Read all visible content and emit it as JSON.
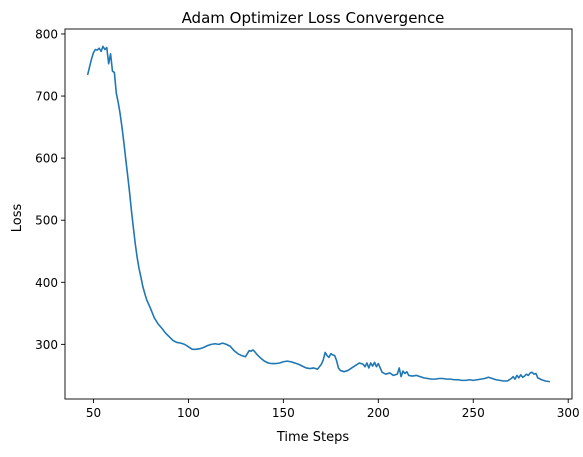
{
  "chart_data": {
    "type": "line",
    "title": "Adam Optimizer Loss Convergence",
    "xlabel": "Time Steps",
    "ylabel": "Loss",
    "xlim": [
      35,
      302
    ],
    "ylim": [
      212,
      808
    ],
    "xticks": [
      50,
      100,
      150,
      200,
      250,
      300
    ],
    "yticks": [
      300,
      400,
      500,
      600,
      700,
      800
    ],
    "grid": false,
    "legend": "none",
    "series": [
      {
        "name": "Loss",
        "color": "#1f77b4",
        "x": [
          47,
          48,
          49,
          50,
          51,
          52,
          53,
          54,
          55,
          56,
          57,
          58,
          59,
          60,
          61,
          62,
          63,
          64,
          65,
          66,
          67,
          68,
          69,
          70,
          71,
          72,
          73,
          74,
          75,
          76,
          77,
          78,
          80,
          82,
          84,
          86,
          88,
          90,
          92,
          94,
          96,
          98,
          100,
          102,
          104,
          106,
          108,
          110,
          112,
          114,
          116,
          118,
          120,
          122,
          124,
          126,
          128,
          130,
          131,
          132,
          133,
          134,
          135,
          136,
          138,
          140,
          142,
          144,
          146,
          148,
          150,
          152,
          154,
          156,
          158,
          160,
          162,
          164,
          166,
          168,
          170,
          171,
          172,
          173,
          174,
          175,
          176,
          177,
          178,
          179,
          180,
          182,
          184,
          186,
          188,
          190,
          192,
          193,
          194,
          195,
          196,
          197,
          198,
          199,
          200,
          201,
          202,
          204,
          206,
          208,
          210,
          211,
          212,
          213,
          214,
          215,
          216,
          218,
          220,
          222,
          224,
          226,
          228,
          230,
          232,
          234,
          236,
          238,
          240,
          242,
          244,
          246,
          248,
          250,
          252,
          254,
          256,
          258,
          260,
          262,
          264,
          266,
          268,
          270,
          271,
          272,
          273,
          274,
          275,
          276,
          277,
          278,
          279,
          280,
          281,
          282,
          283,
          284,
          286,
          288,
          290
        ],
        "y": [
          735,
          748,
          760,
          770,
          775,
          774,
          777,
          772,
          780,
          775,
          778,
          752,
          768,
          740,
          738,
          705,
          690,
          672,
          650,
          625,
          598,
          572,
          545,
          515,
          488,
          462,
          440,
          422,
          408,
          393,
          382,
          372,
          358,
          343,
          333,
          326,
          318,
          312,
          306,
          303,
          302,
          300,
          296,
          292,
          292,
          293,
          295,
          298,
          300,
          301,
          300,
          302,
          300,
          297,
          290,
          285,
          282,
          280,
          285,
          290,
          289,
          291,
          288,
          284,
          278,
          273,
          270,
          269,
          269,
          270,
          272,
          273,
          272,
          270,
          268,
          265,
          262,
          261,
          262,
          260,
          268,
          275,
          287,
          282,
          279,
          285,
          283,
          282,
          274,
          262,
          258,
          256,
          258,
          262,
          266,
          270,
          268,
          264,
          270,
          262,
          270,
          265,
          271,
          264,
          269,
          262,
          255,
          252,
          254,
          250,
          252,
          262,
          248,
          257,
          253,
          256,
          250,
          249,
          250,
          248,
          246,
          245,
          244,
          244,
          245,
          245,
          244,
          244,
          243,
          243,
          242,
          242,
          243,
          242,
          243,
          244,
          245,
          247,
          245,
          243,
          242,
          241,
          241,
          245,
          248,
          244,
          250,
          246,
          251,
          247,
          249,
          252,
          250,
          254,
          255,
          252,
          253,
          246,
          243,
          241,
          240
        ]
      }
    ]
  }
}
